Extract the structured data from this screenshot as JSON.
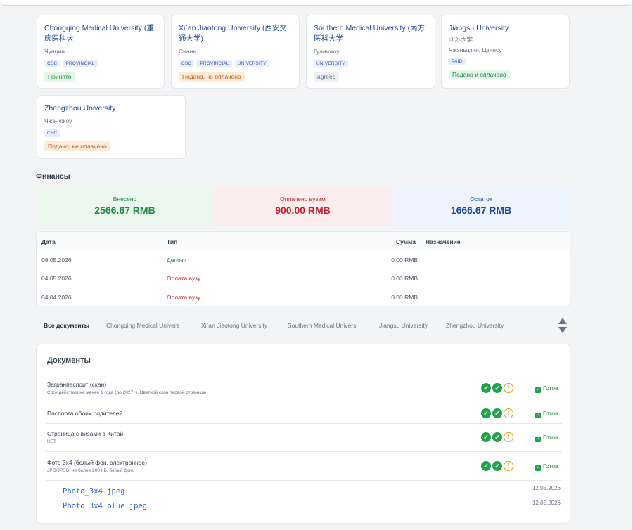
{
  "universities": [
    {
      "name": "Chongqing Medical University (重庆医科大",
      "city": "Чунцин",
      "tags": [
        "CSC",
        "PROVINCIAL"
      ],
      "status": "Принято",
      "status_kind": "green"
    },
    {
      "name": "Xi`an Jiaotong University (西安交通大学)",
      "city": "Сиань",
      "tags": [
        "CSC",
        "PROVINCIAL",
        "UNIVERSITY"
      ],
      "status": "Подано, не оплачено",
      "status_kind": "orange"
    },
    {
      "name": "Southern Medical University (南方医科大学",
      "city": "Гуанчжоу",
      "tags": [
        "UNIVERSITY"
      ],
      "status": "agreed",
      "status_kind": "gray"
    },
    {
      "name": "Jiangsu University",
      "city": "江苏大学",
      "city2": "Чжэньцзян, Цзянсу",
      "tags": [
        "PAID"
      ],
      "status": "Подано и оплачено",
      "status_kind": "green"
    },
    {
      "name": "Zhengzhou University",
      "city": "Чжэнчжоу",
      "tags": [
        "CSC"
      ],
      "status": "Подано, не оплачено",
      "status_kind": "orange"
    }
  ],
  "finance": {
    "title": "Финансы",
    "deposited": {
      "label": "Внесено",
      "value": "2566.67 RMB"
    },
    "paid": {
      "label": "Оплачено вузам",
      "value": "900.00 RMB"
    },
    "balance": {
      "label": "Остаток",
      "value": "1666.67 RMB"
    }
  },
  "transactions": {
    "headers": {
      "date": "Дата",
      "type": "Тип",
      "amount": "Сумма",
      "purpose": "Назначение"
    },
    "rows": [
      {
        "date": "08.05.2026",
        "type": "Депозит",
        "amount": "0.00 RMB",
        "purpose": ""
      },
      {
        "date": "04.05.2026",
        "type": "Оплата вузу",
        "amount": "0.00 RMB",
        "purpose": ""
      },
      {
        "date": "04.04.2026",
        "type": "Оплата вузу",
        "amount": "0.00 RMB",
        "purpose": ""
      }
    ]
  },
  "tabs": [
    "Все документы",
    "Chongqing Medical Univers",
    "Xi`an Jiaotong University",
    "Southern Medical Universi",
    "Jiangsu University",
    "Zhengzhou University"
  ],
  "documents": {
    "title": "Документы",
    "items": [
      {
        "name": "Загранпаспорт (скан)",
        "desc": "Срок действия не менее 1 года (до 2027+). Цветной скан первой страницы.",
        "status": "Готов"
      },
      {
        "name": "Паспорта обоих родителей",
        "desc": "",
        "status": "Готов"
      },
      {
        "name": "Страница с визами в Китай",
        "desc": "НЕТ",
        "status": "Готов"
      },
      {
        "name": "Фото 3x4 (белый фон, электронное)",
        "desc": "JPG/JPEG, не более 200 КБ, белый фон.",
        "status": "Готов"
      }
    ],
    "files": [
      {
        "name": "Photo_3x4.jpeg",
        "date": "12.05.2026"
      },
      {
        "name": "Photo_3x4_blue.jpeg",
        "date": "12.05.2026"
      }
    ]
  },
  "colors": {
    "accent": "#1e4a9b",
    "success": "#1f8a45",
    "danger": "#c0202f"
  }
}
